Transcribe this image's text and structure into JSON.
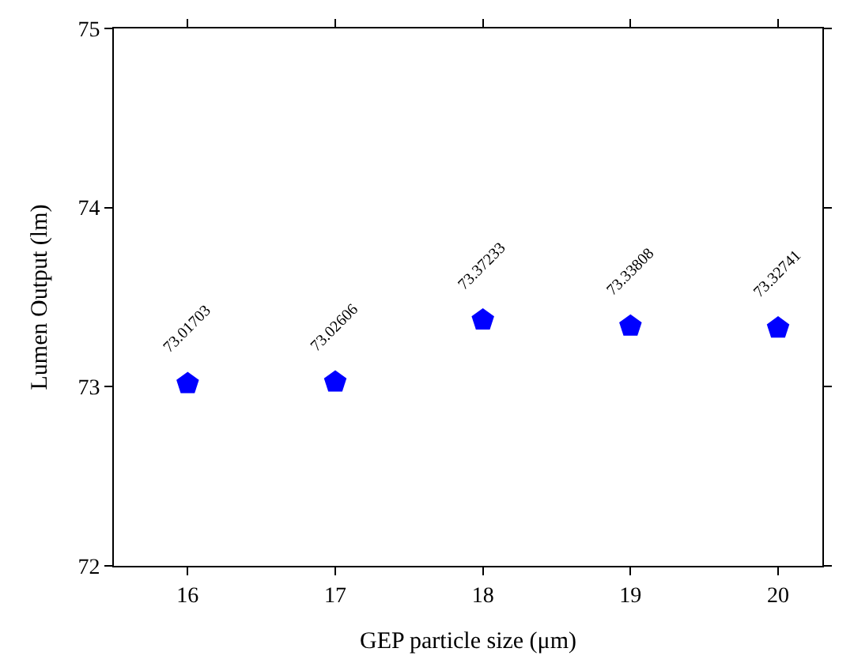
{
  "chart_data": {
    "type": "scatter",
    "xlabel": "GEP particle size (μm)",
    "ylabel": "Lumen Output (lm)",
    "x": [
      16,
      17,
      18,
      19,
      20
    ],
    "series": [
      {
        "color": "#0000ff",
        "values": [
          73.01703,
          73.02606,
          73.37233,
          73.33808,
          73.32741
        ]
      }
    ],
    "xlim": [
      15.5,
      20.3
    ],
    "xticks": [
      16,
      17,
      18,
      19,
      20
    ],
    "ylim": [
      72,
      75
    ],
    "yticks": [
      72,
      73,
      74,
      75
    ],
    "data_labels": true,
    "legend": false
  }
}
